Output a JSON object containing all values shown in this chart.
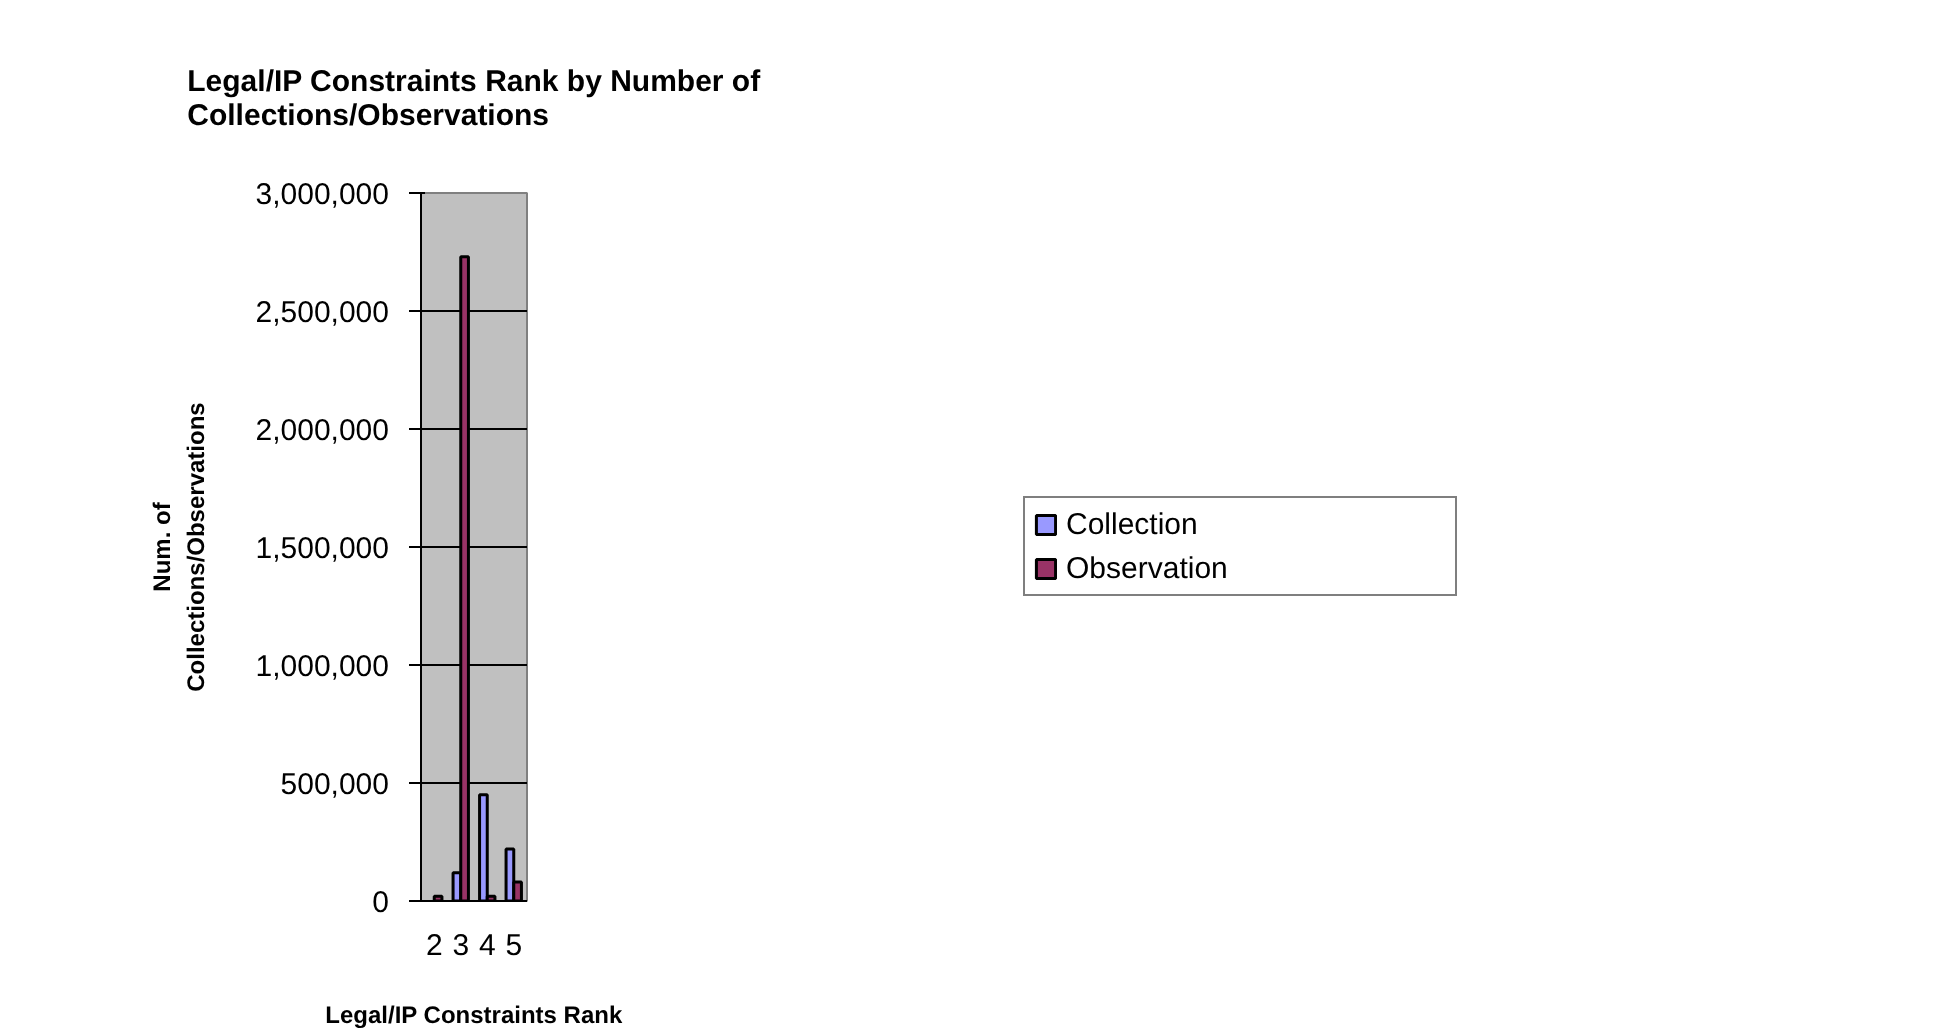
{
  "chart_data": {
    "type": "bar",
    "title": "Legal/IP Constraints Rank by Number of Collections/Observations",
    "xlabel": "Legal/IP Constraints Rank",
    "ylabel": "Num. of Collections/Observations",
    "categories": [
      "2",
      "3",
      "4",
      "5"
    ],
    "series": [
      {
        "name": "Collection",
        "color": "#9999ff",
        "values": [
          null,
          120000,
          450000,
          220000
        ]
      },
      {
        "name": "Observation",
        "color": "#993366",
        "values": [
          20000,
          2730000,
          20000,
          80000
        ]
      }
    ],
    "ylim": [
      0,
      3000000
    ],
    "yticks": [
      0,
      {
        "value": 500000,
        "label": "500,000"
      },
      {
        "value": 1000000,
        "label": "1,000,000"
      },
      {
        "value": 1500000,
        "label": "1,500,000"
      },
      {
        "value": 2000000,
        "label": "2,000,000"
      },
      {
        "value": 2500000,
        "label": "2,500,000"
      },
      {
        "value": 3000000,
        "label": "3,000,000"
      }
    ],
    "grid": "y",
    "legend": "right"
  }
}
